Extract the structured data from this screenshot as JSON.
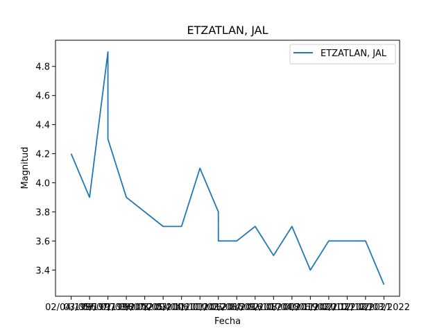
{
  "chart_data": {
    "type": "line",
    "title": "ETZATLAN, JAL",
    "xlabel": "Fecha",
    "ylabel": "Magnitud",
    "categories": [
      "02/04/1995",
      "03/05/1997",
      "09/07/1998",
      "09/07/1998",
      "01/03/2002",
      "08/05/2006",
      "03/04/2010",
      "11/11/2012",
      "01/02/2015",
      "01/02/2015",
      "06/06/2016",
      "04/09/2017",
      "02/10/2018",
      "08/04/2019",
      "01/06/2020",
      "11/02/2021",
      "02/10/2021",
      "12/12/2021",
      "02/03/2022"
    ],
    "series": [
      {
        "name": "ETZATLAN, JAL",
        "color": "#1f77b4",
        "x": [
          0,
          1,
          2,
          2,
          3,
          5,
          6,
          7,
          8,
          8,
          9,
          10,
          11,
          12,
          13,
          14,
          15,
          16,
          17
        ],
        "values": [
          4.2,
          3.9,
          4.9,
          4.3,
          3.9,
          3.7,
          3.7,
          4.1,
          3.8,
          3.6,
          3.6,
          3.7,
          3.5,
          3.7,
          3.4,
          3.6,
          3.6,
          3.6,
          3.3
        ]
      }
    ],
    "x_ticks": [
      "02/04/1995",
      "03/05/1997",
      "09/07/1998",
      "01/03/2002",
      "09/07/2004",
      "08/05/2006",
      "03/04/2010",
      "11/11/2012",
      "01/02/2015",
      "06/06/2016",
      "04/09/2017",
      "02/10/2018",
      "08/04/2019",
      "01/06/2020",
      "11/02/2021",
      "02/10/2021",
      "12/12/2021",
      "02/03/2022"
    ],
    "yticks": [
      3.4,
      3.6,
      3.8,
      4.0,
      4.2,
      4.4,
      4.6,
      4.8
    ],
    "xlim": [
      -0.85,
      17.85
    ],
    "ylim": [
      3.22,
      4.98
    ],
    "grid": false,
    "legend_position": "top-right"
  }
}
